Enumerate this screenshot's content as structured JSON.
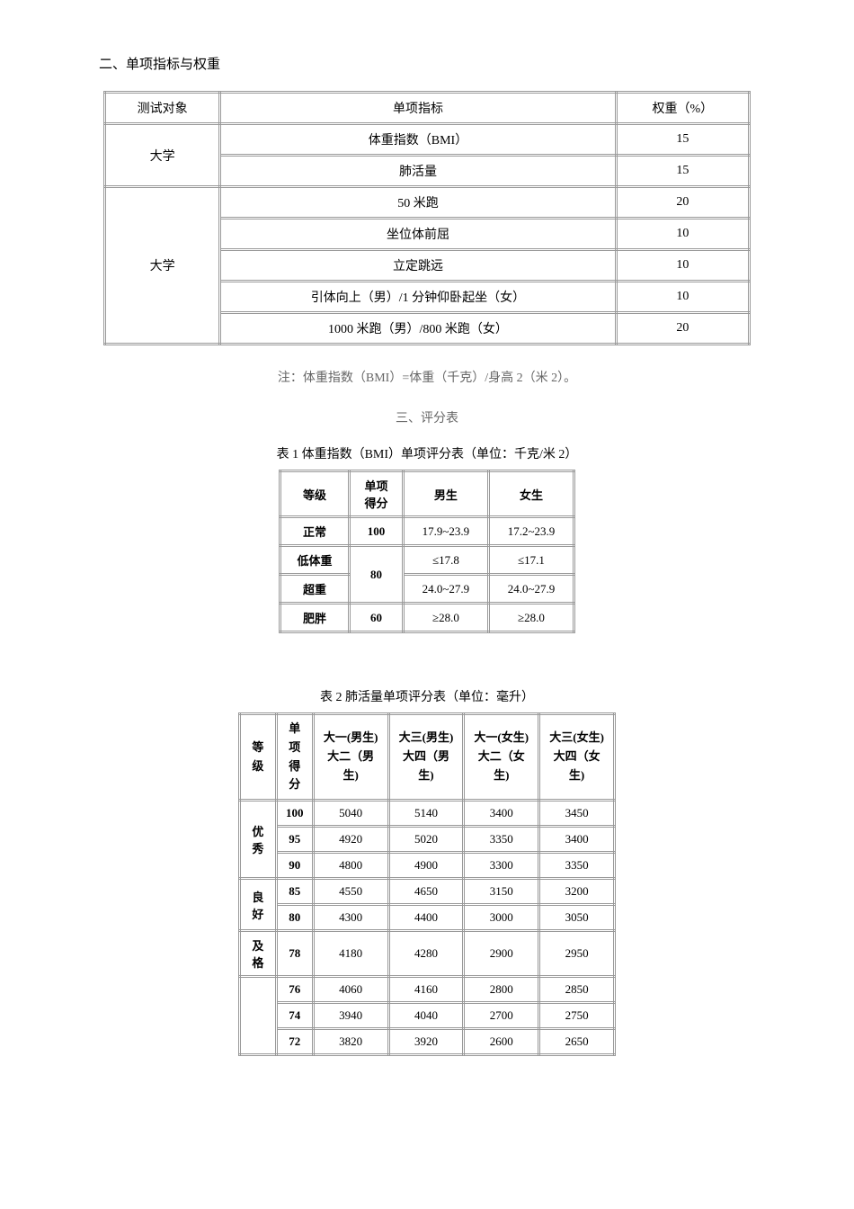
{
  "section2": {
    "title": "二、单项指标与权重",
    "table": {
      "headers": [
        "测试对象",
        "单项指标",
        "权重（%）"
      ],
      "rows": [
        {
          "subject": "大学",
          "indicator": "体重指数（BMI）",
          "weight": "15"
        },
        {
          "indicator": "肺活量",
          "weight": "15"
        },
        {
          "subject": "大学",
          "indicator": "50 米跑",
          "weight": "20"
        },
        {
          "indicator": "坐位体前屈",
          "weight": "10"
        },
        {
          "indicator": "立定跳远",
          "weight": "10"
        },
        {
          "indicator": "引体向上（男）/1 分钟仰卧起坐（女）",
          "weight": "10"
        },
        {
          "indicator": "1000 米跑（男）/800 米跑（女）",
          "weight": "20"
        }
      ]
    },
    "note": "注：体重指数（BMI）=体重（千克）/身高 2（米 2）。"
  },
  "section3": {
    "title": "三、评分表",
    "table1": {
      "caption": "表 1 体重指数（BMI）单项评分表（单位：千克/米 2）",
      "headers": {
        "grade": "等级",
        "score": "单项\n得分",
        "male": "男生",
        "female": "女生"
      },
      "rows": [
        {
          "grade": "正常",
          "score": "100",
          "male": "17.9~23.9",
          "female": "17.2~23.9"
        },
        {
          "grade": "低体重",
          "score": "80",
          "male": "≤17.8",
          "female": "≤17.1"
        },
        {
          "grade": "超重",
          "male": "24.0~27.9",
          "female": "24.0~27.9"
        },
        {
          "grade": "肥胖",
          "score": "60",
          "male": "≥28.0",
          "female": "≥28.0"
        }
      ]
    },
    "table2": {
      "caption": "表 2 肺活量单项评分表（单位：毫升）",
      "headers": {
        "grade": "等级",
        "score": "单项\n得分",
        "col1a": "大一(男生)",
        "col1b": "大二（男生)",
        "col2a": "大三(男生)",
        "col2b": "大四（男生)",
        "col3a": "大一(女生)",
        "col3b": "大二（女生)",
        "col4a": "大三(女生)",
        "col4b": "大四（女生)"
      },
      "rows": [
        {
          "grade": "优秀",
          "score": "100",
          "c1": "5040",
          "c2": "5140",
          "c3": "3400",
          "c4": "3450"
        },
        {
          "score": "95",
          "c1": "4920",
          "c2": "5020",
          "c3": "3350",
          "c4": "3400"
        },
        {
          "score": "90",
          "c1": "4800",
          "c2": "4900",
          "c3": "3300",
          "c4": "3350"
        },
        {
          "grade": "良好",
          "score": "85",
          "c1": "4550",
          "c2": "4650",
          "c3": "3150",
          "c4": "3200"
        },
        {
          "score": "80",
          "c1": "4300",
          "c2": "4400",
          "c3": "3000",
          "c4": "3050"
        },
        {
          "grade": "及格",
          "score": "78",
          "c1": "4180",
          "c2": "4280",
          "c3": "2900",
          "c4": "2950"
        },
        {
          "score": "76",
          "c1": "4060",
          "c2": "4160",
          "c3": "2800",
          "c4": "2850"
        },
        {
          "score": "74",
          "c1": "3940",
          "c2": "4040",
          "c3": "2700",
          "c4": "2750"
        },
        {
          "score": "72",
          "c1": "3820",
          "c2": "3920",
          "c3": "2600",
          "c4": "2650"
        }
      ]
    }
  }
}
